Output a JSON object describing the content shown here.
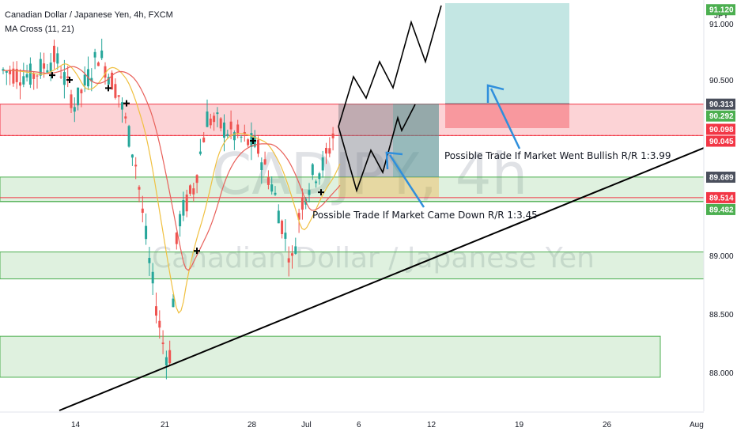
{
  "header": {
    "symbol_line": "Canadian Dollar / Japanese Yen, 4h, FXCM",
    "indicator": "MA Cross (11, 21)",
    "currency": "JPY"
  },
  "watermark": {
    "symbol": "CADJPY, 4h",
    "name": "Canadian Dollar / Japanese Yen"
  },
  "colors": {
    "green_zone": "#4caf50",
    "red_zone": "#f23645",
    "teal_zone": "#26a69a",
    "candle_up": "#26a69a",
    "candle_down": "#ef5350",
    "ma_fast": "#f0c040",
    "ma_slow": "#e8605a",
    "arrow": "#2f8fdc"
  },
  "chart_data": {
    "type": "candlestick",
    "price_axis": {
      "range": [
        87.88,
        91.14
      ],
      "ticks": [
        "91.000",
        "90.500",
        "89.000",
        "88.500",
        "88.000"
      ]
    },
    "time_axis": {
      "ticks": [
        "14",
        "21",
        "28",
        "Jul",
        "6",
        "12",
        "19",
        "26",
        "Aug"
      ]
    },
    "price_badges": [
      {
        "label": "91.120",
        "price": 91.12,
        "style": "green"
      },
      {
        "label": "90.313",
        "price": 90.313,
        "style": "gray"
      },
      {
        "label": "90.292",
        "price": 90.292,
        "style": "green"
      },
      {
        "label": "90.098",
        "price": 90.098,
        "style": "red"
      },
      {
        "label": "90.045",
        "price": 90.045,
        "style": "red"
      },
      {
        "label": "89.689",
        "price": 89.689,
        "style": "gray"
      },
      {
        "label": "89.514",
        "price": 89.514,
        "style": "red"
      },
      {
        "label": "89.482",
        "price": 89.482,
        "style": "green"
      }
    ],
    "zones": [
      {
        "kind": "resistance",
        "low": 90.045,
        "high": 90.313
      },
      {
        "kind": "support",
        "low": 89.48,
        "high": 89.69
      },
      {
        "kind": "support",
        "low": 88.82,
        "high": 89.05
      },
      {
        "kind": "support",
        "low": 87.98,
        "high": 88.33
      }
    ],
    "annotations": [
      "Possible Trade If Market Went Bullish R/R 1:3.99",
      "Possible Trade If Market Came Down R/R 1:3.45"
    ],
    "series": [
      {
        "name": "MA Cross (11, 21)",
        "kind": "moving averages"
      }
    ]
  }
}
